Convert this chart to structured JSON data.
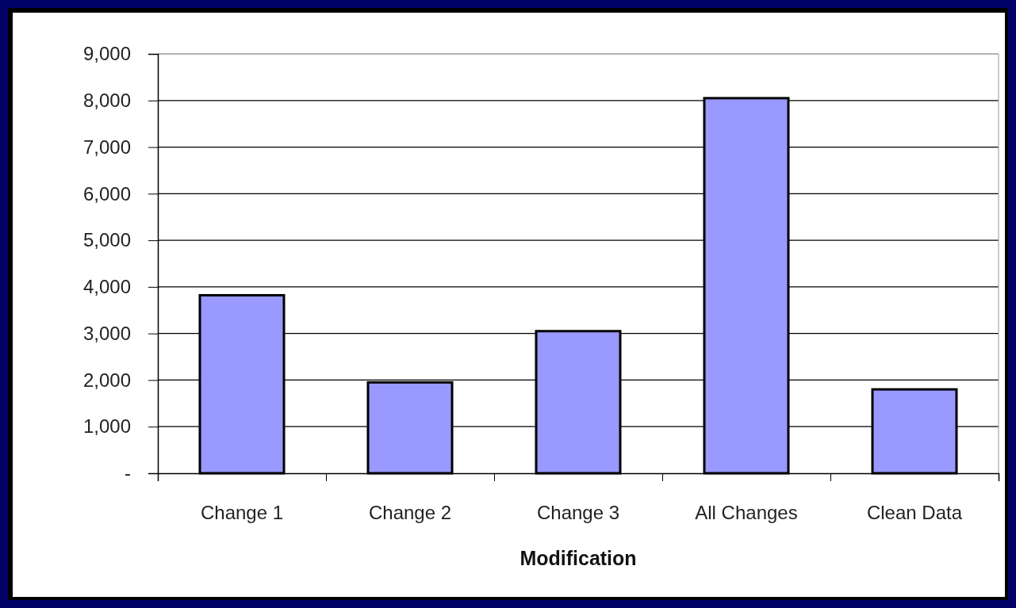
{
  "chart_data": {
    "type": "bar",
    "xlabel": "Modification",
    "categories": [
      "Change 1",
      "Change 2",
      "Change 3",
      "All Changes",
      "Clean Data"
    ],
    "values": [
      3820,
      1950,
      3050,
      8050,
      1800
    ],
    "color": "#9999ff",
    "ylim": [
      0,
      9000
    ],
    "yticks": [
      {
        "value": 0,
        "label": "-"
      },
      {
        "value": 1000,
        "label": "1,000"
      },
      {
        "value": 2000,
        "label": "2,000"
      },
      {
        "value": 3000,
        "label": "3,000"
      },
      {
        "value": 4000,
        "label": "4,000"
      },
      {
        "value": 5000,
        "label": "5,000"
      },
      {
        "value": 6000,
        "label": "6,000"
      },
      {
        "value": 7000,
        "label": "7,000"
      },
      {
        "value": 8000,
        "label": "8,000"
      },
      {
        "value": 9000,
        "label": "9,000"
      }
    ],
    "grid": "y"
  }
}
